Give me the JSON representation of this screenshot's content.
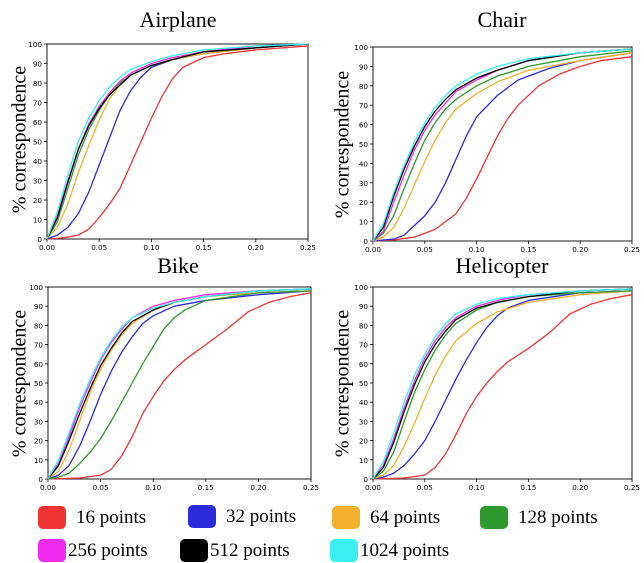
{
  "chart_data": [
    {
      "type": "line",
      "title": "Airplane",
      "ylabel": "% correspondence",
      "xlim": [
        0,
        0.25
      ],
      "ylim": [
        0,
        100
      ],
      "xticks": [
        "0.00",
        "0.05",
        "0.10",
        "0.15",
        "0.20",
        "0.25"
      ],
      "yticks": [
        "0",
        "10",
        "20",
        "30",
        "40",
        "50",
        "60",
        "70",
        "80",
        "90",
        "100"
      ],
      "series": [
        {
          "name": "16 points",
          "x": [
            0,
            0.01,
            0.02,
            0.03,
            0.04,
            0.05,
            0.06,
            0.07,
            0.08,
            0.09,
            0.1,
            0.11,
            0.12,
            0.13,
            0.15,
            0.17,
            0.2,
            0.25
          ],
          "y": [
            0,
            0.3,
            1,
            2,
            5,
            11,
            18,
            26,
            38,
            50,
            62,
            73,
            82,
            88,
            93,
            95,
            97,
            99
          ]
        },
        {
          "name": "32 points",
          "x": [
            0,
            0.01,
            0.02,
            0.03,
            0.04,
            0.05,
            0.06,
            0.07,
            0.08,
            0.09,
            0.1,
            0.12,
            0.15,
            0.2,
            0.25
          ],
          "y": [
            0,
            2,
            6,
            13,
            24,
            38,
            52,
            66,
            76,
            83,
            88,
            92,
            95,
            98,
            100
          ]
        },
        {
          "name": "64 points",
          "x": [
            0,
            0.01,
            0.02,
            0.03,
            0.04,
            0.05,
            0.06,
            0.07,
            0.08,
            0.1,
            0.12,
            0.15,
            0.2,
            0.25
          ],
          "y": [
            0,
            6,
            18,
            34,
            48,
            61,
            72,
            79,
            84,
            89,
            92,
            95,
            98,
            100
          ]
        },
        {
          "name": "128 points",
          "x": [
            0,
            0.01,
            0.02,
            0.03,
            0.04,
            0.05,
            0.06,
            0.07,
            0.08,
            0.1,
            0.12,
            0.15,
            0.2,
            0.25
          ],
          "y": [
            0,
            9,
            26,
            43,
            56,
            66,
            74,
            80,
            84,
            89,
            92,
            96,
            98,
            100
          ]
        },
        {
          "name": "256 points",
          "x": [
            0,
            0.01,
            0.02,
            0.03,
            0.04,
            0.05,
            0.06,
            0.07,
            0.08,
            0.1,
            0.12,
            0.15,
            0.2,
            0.25
          ],
          "y": [
            0,
            12,
            30,
            46,
            59,
            68,
            75,
            81,
            85,
            90,
            93,
            96,
            99,
            100
          ]
        },
        {
          "name": "512 points",
          "x": [
            0,
            0.01,
            0.02,
            0.03,
            0.04,
            0.05,
            0.06,
            0.07,
            0.08,
            0.1,
            0.12,
            0.15,
            0.2,
            0.25
          ],
          "y": [
            0,
            11,
            29,
            46,
            58,
            67,
            74,
            79,
            84,
            89,
            92,
            96,
            98,
            100
          ]
        },
        {
          "name": "1024 points",
          "x": [
            0,
            0.01,
            0.02,
            0.03,
            0.04,
            0.05,
            0.06,
            0.07,
            0.08,
            0.1,
            0.12,
            0.15,
            0.2,
            0.25
          ],
          "y": [
            0,
            14,
            33,
            50,
            62,
            71,
            78,
            83,
            87,
            91,
            94,
            97,
            99,
            100
          ]
        }
      ]
    },
    {
      "type": "line",
      "title": "Chair",
      "ylabel": "% correspondence",
      "xlim": [
        0,
        0.25
      ],
      "ylim": [
        0,
        100
      ],
      "xticks": [
        "0.00",
        "0.05",
        "0.10",
        "0.15",
        "0.20",
        "0.25"
      ],
      "yticks": [
        "0",
        "10",
        "20",
        "30",
        "40",
        "50",
        "60",
        "70",
        "80",
        "90",
        "100"
      ],
      "series": [
        {
          "name": "16 points",
          "x": [
            0,
            0.02,
            0.04,
            0.06,
            0.08,
            0.09,
            0.1,
            0.11,
            0.12,
            0.13,
            0.14,
            0.16,
            0.18,
            0.2,
            0.22,
            0.25
          ],
          "y": [
            0,
            0.5,
            2,
            6,
            14,
            22,
            32,
            43,
            54,
            63,
            70,
            80,
            86,
            90,
            93,
            95
          ]
        },
        {
          "name": "32 points",
          "x": [
            0,
            0.01,
            0.02,
            0.03,
            0.04,
            0.05,
            0.06,
            0.07,
            0.08,
            0.09,
            0.1,
            0.12,
            0.14,
            0.17,
            0.2,
            0.25
          ],
          "y": [
            0,
            0.5,
            1,
            3,
            8,
            13,
            20,
            30,
            42,
            54,
            64,
            75,
            83,
            89,
            93,
            97
          ]
        },
        {
          "name": "64 points",
          "x": [
            0,
            0.01,
            0.02,
            0.03,
            0.04,
            0.05,
            0.06,
            0.07,
            0.08,
            0.1,
            0.12,
            0.15,
            0.2,
            0.25
          ],
          "y": [
            0,
            2,
            7,
            17,
            29,
            41,
            52,
            61,
            68,
            76,
            82,
            88,
            93,
            97
          ]
        },
        {
          "name": "128 points",
          "x": [
            0,
            0.01,
            0.02,
            0.03,
            0.04,
            0.05,
            0.06,
            0.07,
            0.08,
            0.1,
            0.12,
            0.15,
            0.2,
            0.25
          ],
          "y": [
            0,
            4,
            13,
            27,
            40,
            52,
            61,
            68,
            73,
            80,
            85,
            90,
            95,
            98
          ]
        },
        {
          "name": "256 points",
          "x": [
            0,
            0.01,
            0.02,
            0.03,
            0.04,
            0.05,
            0.06,
            0.07,
            0.08,
            0.1,
            0.12,
            0.15,
            0.2,
            0.25
          ],
          "y": [
            0,
            5,
            20,
            34,
            47,
            57,
            65,
            71,
            77,
            83,
            88,
            93,
            97,
            99
          ]
        },
        {
          "name": "512 points",
          "x": [
            0,
            0.01,
            0.02,
            0.03,
            0.04,
            0.05,
            0.06,
            0.07,
            0.08,
            0.1,
            0.12,
            0.15,
            0.2,
            0.25
          ],
          "y": [
            0,
            7,
            23,
            37,
            49,
            59,
            67,
            73,
            78,
            84,
            88,
            93,
            97,
            99
          ]
        },
        {
          "name": "1024 points",
          "x": [
            0,
            0.01,
            0.02,
            0.03,
            0.04,
            0.05,
            0.06,
            0.07,
            0.08,
            0.1,
            0.12,
            0.15,
            0.2,
            0.25
          ],
          "y": [
            0,
            9,
            25,
            39,
            51,
            61,
            69,
            75,
            80,
            86,
            90,
            94,
            97,
            99
          ]
        }
      ]
    },
    {
      "type": "line",
      "title": "Bike",
      "ylabel": "% correspondence",
      "xlim": [
        0,
        0.25
      ],
      "ylim": [
        0,
        100
      ],
      "xticks": [
        "0.00",
        "0.05",
        "0.10",
        "0.15",
        "0.20",
        "0.25"
      ],
      "yticks": [
        "0",
        "10",
        "20",
        "30",
        "40",
        "50",
        "60",
        "70",
        "80",
        "90",
        "100"
      ],
      "series": [
        {
          "name": "16 points",
          "x": [
            0,
            0.03,
            0.05,
            0.06,
            0.07,
            0.08,
            0.09,
            0.1,
            0.11,
            0.12,
            0.13,
            0.15,
            0.17,
            0.19,
            0.21,
            0.23,
            0.25
          ],
          "y": [
            0,
            0.5,
            2,
            5,
            12,
            22,
            34,
            43,
            51,
            57,
            62,
            70,
            78,
            87,
            92,
            95,
            97
          ]
        },
        {
          "name": "32 points",
          "x": [
            0,
            0.01,
            0.02,
            0.03,
            0.04,
            0.05,
            0.06,
            0.07,
            0.08,
            0.09,
            0.1,
            0.12,
            0.15,
            0.2,
            0.25
          ],
          "y": [
            0,
            2,
            7,
            17,
            30,
            44,
            56,
            66,
            74,
            81,
            85,
            90,
            93,
            96,
            98
          ]
        },
        {
          "name": "64 points",
          "x": [
            0,
            0.01,
            0.02,
            0.03,
            0.04,
            0.05,
            0.06,
            0.07,
            0.08,
            0.1,
            0.12,
            0.15,
            0.2,
            0.25
          ],
          "y": [
            0,
            4,
            15,
            30,
            45,
            57,
            67,
            75,
            81,
            88,
            92,
            95,
            97,
            98
          ]
        },
        {
          "name": "128 points",
          "x": [
            0,
            0.01,
            0.02,
            0.03,
            0.04,
            0.05,
            0.06,
            0.07,
            0.08,
            0.09,
            0.1,
            0.11,
            0.12,
            0.13,
            0.15,
            0.2,
            0.25
          ],
          "y": [
            0,
            1,
            3,
            8,
            14,
            21,
            30,
            40,
            50,
            60,
            69,
            78,
            84,
            88,
            93,
            97,
            98
          ]
        },
        {
          "name": "256 points",
          "x": [
            0,
            0.01,
            0.02,
            0.03,
            0.04,
            0.05,
            0.06,
            0.07,
            0.08,
            0.1,
            0.12,
            0.15,
            0.2,
            0.25
          ],
          "y": [
            0,
            8,
            22,
            37,
            50,
            62,
            71,
            78,
            84,
            90,
            93,
            96,
            98,
            99
          ]
        },
        {
          "name": "512 points",
          "x": [
            0,
            0.01,
            0.02,
            0.03,
            0.04,
            0.05,
            0.06,
            0.07,
            0.08,
            0.1,
            0.12,
            0.15,
            0.2,
            0.25
          ],
          "y": [
            0,
            7,
            20,
            34,
            47,
            59,
            68,
            76,
            82,
            88,
            92,
            95,
            98,
            99
          ]
        },
        {
          "name": "1024 points",
          "x": [
            0,
            0.01,
            0.02,
            0.03,
            0.04,
            0.05,
            0.06,
            0.07,
            0.08,
            0.1,
            0.12,
            0.15,
            0.2,
            0.25
          ],
          "y": [
            0,
            10,
            24,
            39,
            52,
            63,
            72,
            79,
            84,
            89,
            92,
            95,
            98,
            99
          ]
        }
      ]
    },
    {
      "type": "line",
      "title": "Helicopter",
      "ylabel": "% correspondence",
      "xlim": [
        0,
        0.25
      ],
      "ylim": [
        0,
        100
      ],
      "xticks": [
        "0.00",
        "0.05",
        "0.10",
        "0.15",
        "0.20",
        "0.25"
      ],
      "yticks": [
        "0",
        "10",
        "20",
        "30",
        "40",
        "50",
        "60",
        "70",
        "80",
        "90",
        "100"
      ],
      "series": [
        {
          "name": "16 points",
          "x": [
            0,
            0.03,
            0.05,
            0.06,
            0.07,
            0.08,
            0.09,
            0.1,
            0.11,
            0.12,
            0.13,
            0.15,
            0.17,
            0.19,
            0.21,
            0.23,
            0.25
          ],
          "y": [
            0,
            0.5,
            2,
            6,
            13,
            23,
            34,
            43,
            50,
            56,
            61,
            68,
            76,
            86,
            91,
            94,
            96
          ]
        },
        {
          "name": "32 points",
          "x": [
            0,
            0.01,
            0.02,
            0.03,
            0.04,
            0.05,
            0.06,
            0.07,
            0.08,
            0.09,
            0.1,
            0.11,
            0.12,
            0.13,
            0.15,
            0.2,
            0.25
          ],
          "y": [
            0,
            1,
            3,
            7,
            13,
            20,
            30,
            41,
            52,
            62,
            71,
            79,
            85,
            89,
            93,
            97,
            98
          ]
        },
        {
          "name": "64 points",
          "x": [
            0,
            0.01,
            0.02,
            0.03,
            0.04,
            0.05,
            0.06,
            0.07,
            0.08,
            0.1,
            0.12,
            0.15,
            0.2,
            0.25
          ],
          "y": [
            0,
            2,
            7,
            17,
            29,
            42,
            54,
            64,
            72,
            81,
            87,
            92,
            96,
            98
          ]
        },
        {
          "name": "128 points",
          "x": [
            0,
            0.01,
            0.02,
            0.03,
            0.04,
            0.05,
            0.06,
            0.07,
            0.08,
            0.1,
            0.12,
            0.15,
            0.2,
            0.25
          ],
          "y": [
            0,
            4,
            14,
            30,
            45,
            57,
            67,
            75,
            81,
            88,
            92,
            95,
            97,
            98
          ]
        },
        {
          "name": "256 points",
          "x": [
            0,
            0.01,
            0.02,
            0.03,
            0.04,
            0.05,
            0.06,
            0.07,
            0.08,
            0.1,
            0.12,
            0.15,
            0.2,
            0.25
          ],
          "y": [
            0,
            7,
            21,
            37,
            51,
            63,
            72,
            79,
            84,
            90,
            93,
            96,
            98,
            99
          ]
        },
        {
          "name": "512 points",
          "x": [
            0,
            0.01,
            0.02,
            0.03,
            0.04,
            0.05,
            0.06,
            0.07,
            0.08,
            0.1,
            0.12,
            0.15,
            0.2,
            0.25
          ],
          "y": [
            0,
            6,
            19,
            35,
            49,
            61,
            70,
            77,
            83,
            89,
            92,
            95,
            98,
            99
          ]
        },
        {
          "name": "1024 points",
          "x": [
            0,
            0.01,
            0.02,
            0.03,
            0.04,
            0.05,
            0.06,
            0.07,
            0.08,
            0.1,
            0.12,
            0.15,
            0.2,
            0.25
          ],
          "y": [
            0,
            9,
            24,
            40,
            54,
            65,
            74,
            81,
            86,
            91,
            94,
            96,
            98,
            99
          ]
        }
      ]
    }
  ],
  "legend": {
    "items": [
      {
        "label": "16 points",
        "color": "#f03434"
      },
      {
        "label": "32 points",
        "color": "#2b2bdc"
      },
      {
        "label": "64 points",
        "color": "#f4b02a"
      },
      {
        "label": "128 points",
        "color": "#2e9a2e"
      },
      {
        "label": "256 points",
        "color": "#ee2bee"
      },
      {
        "label": "512 points",
        "color": "#000000"
      },
      {
        "label": "1024 points",
        "color": "#38f0f0"
      }
    ]
  },
  "colors": {
    "16 points": "#f03434",
    "32 points": "#2b2bdc",
    "64 points": "#f4b02a",
    "128 points": "#2e9a2e",
    "256 points": "#ee2bee",
    "512 points": "#000000",
    "1024 points": "#38f0f0"
  }
}
